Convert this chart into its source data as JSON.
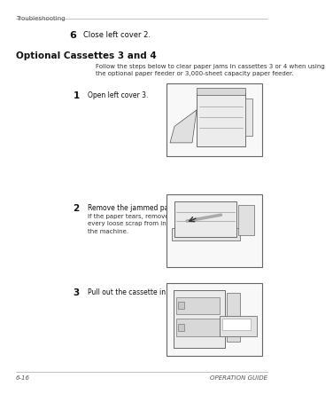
{
  "bg_color": "#ffffff",
  "page_header": "Troubleshooting",
  "footer_left": "6-16",
  "footer_right": "OPERATION GUIDE",
  "step6_num": "6",
  "step6_text": "Close left cover 2.",
  "section_title": "Optional Cassettes 3 and 4",
  "section_intro": "Follow the steps below to clear paper jams in cassettes 3 or 4 when using\nthe optional paper feeder or 3,000-sheet capacity paper feeder.",
  "steps": [
    {
      "num": "1",
      "text": "Open left cover 3.",
      "sub_text": ""
    },
    {
      "num": "2",
      "text": "Remove the jammed paper.",
      "sub_text": "If the paper tears, remove\nevery loose scrap from inside\nthe machine."
    },
    {
      "num": "3",
      "text": "Pull out the cassette in use.",
      "sub_text": ""
    }
  ]
}
